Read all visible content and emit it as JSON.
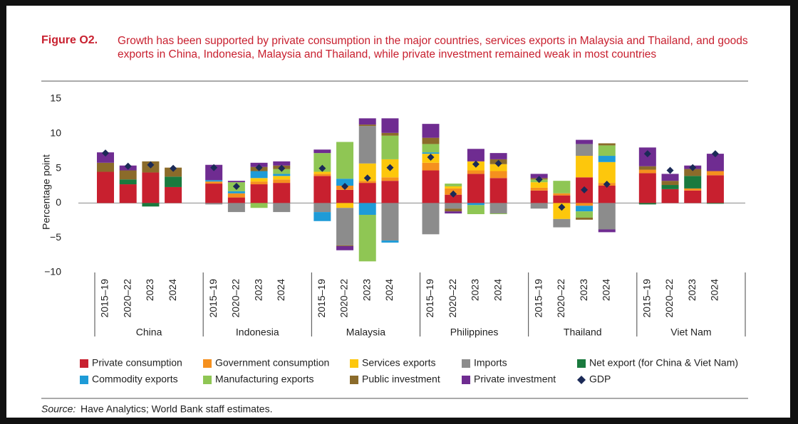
{
  "chart_data": {
    "type": "stacked_bar",
    "figure_label": "Figure O2.",
    "title": "Growth has been supported by private consumption in the major countries, services exports in Malaysia and Thailand, and goods exports in China, Indonesia, Malaysia and Thailand, while private investment remained weak in most countries",
    "y_label": "Percentage point",
    "ylim": [
      -10,
      15
    ],
    "yticks": [
      {
        "value": -10,
        "label": "−10"
      },
      {
        "value": -5,
        "label": "−5"
      },
      0,
      5,
      10,
      15
    ],
    "grid": false,
    "groups": [
      "China",
      "Indonesia",
      "Malaysia",
      "Philippines",
      "Thailand",
      "Viet Nam"
    ],
    "categories": [
      "2015–19",
      "2020–22",
      "2023",
      "2024",
      "2015–19",
      "2020–22",
      "2023",
      "2024",
      "2015–19",
      "2020–22",
      "2023",
      "2024",
      "2015–19",
      "2020–22",
      "2023",
      "2024",
      "2015–19",
      "2020–22",
      "2023",
      "2024",
      "2015–19",
      "2020–22",
      "2023",
      "2024"
    ],
    "series": [
      {
        "name": "Private consumption",
        "color": "#c8202f",
        "values": [
          4.5,
          2.7,
          4.4,
          2.3,
          2.8,
          0.8,
          2.7,
          2.9,
          3.9,
          1.9,
          2.9,
          3.2,
          4.7,
          1.2,
          4.2,
          3.6,
          1.8,
          1.1,
          3.7,
          2.5,
          4.3,
          2.0,
          1.8,
          4.0
        ]
      },
      {
        "name": "Government consumption",
        "color": "#f5901e",
        "values": [
          0,
          0,
          0,
          0,
          0.3,
          0.6,
          0.4,
          0.5,
          0.3,
          0.6,
          0.3,
          0.5,
          1.1,
          0.9,
          0.5,
          1.0,
          0.4,
          0.3,
          -0.4,
          0.4,
          0.5,
          0,
          0.3,
          0.6
        ]
      },
      {
        "name": "Services exports",
        "color": "#fdc70c",
        "values": [
          0,
          0,
          0,
          0,
          0,
          0,
          0.5,
          0.5,
          0.3,
          -0.7,
          2.5,
          2.6,
          1.3,
          0.3,
          1.3,
          1.0,
          0.8,
          -2.3,
          3.1,
          3.0,
          0,
          0,
          0,
          0
        ]
      },
      {
        "name": "Imports",
        "color": "#8c8c8c",
        "values": [
          0,
          0,
          0,
          0,
          -0.2,
          -1.3,
          0,
          -1.3,
          -1.3,
          -5.4,
          5.4,
          -5.4,
          -4.5,
          -0.8,
          0,
          -1.5,
          -0.8,
          -1.2,
          1.7,
          -3.8,
          0,
          0,
          0,
          0
        ]
      },
      {
        "name": "Net export (for China & Viet Nam)",
        "color": "#1a7a3e",
        "values": [
          0,
          0.7,
          -0.5,
          1.5,
          0,
          0,
          0,
          0,
          0,
          0,
          0,
          0,
          0,
          0,
          0,
          0,
          0,
          0,
          0,
          0,
          -0.2,
          0.6,
          1.8,
          -0.1
        ]
      },
      {
        "name": "Commodity exports",
        "color": "#1e9bd7",
        "values": [
          0,
          0,
          0,
          0,
          0.2,
          0.3,
          1.0,
          0.3,
          -1.3,
          1.0,
          -1.7,
          -0.3,
          0.2,
          0,
          -0.3,
          0,
          0,
          0,
          -0.8,
          0.9,
          0,
          0,
          0,
          0
        ]
      },
      {
        "name": "Manufacturing exports",
        "color": "#8fc654",
        "values": [
          0,
          0,
          0,
          0,
          0,
          1.3,
          -0.7,
          0.7,
          2.7,
          5.3,
          -6.7,
          3.4,
          1.2,
          0.4,
          -1.3,
          -0.1,
          0.4,
          1.8,
          -0.9,
          1.5,
          0,
          0,
          0,
          0
        ]
      },
      {
        "name": "Public investment",
        "color": "#8b6b2a",
        "values": [
          1.3,
          1.3,
          1.6,
          1.3,
          0,
          0,
          0.6,
          0.5,
          0,
          -0.1,
          0.2,
          0.4,
          0.9,
          -0.4,
          0,
          0.7,
          0.2,
          0,
          -0.3,
          0.3,
          0.5,
          0.6,
          1.0,
          0
        ]
      },
      {
        "name": "Private investment",
        "color": "#6f2c91",
        "values": [
          1.5,
          0.7,
          0,
          0,
          2.2,
          0.2,
          0.6,
          0.6,
          0.5,
          -0.6,
          0.9,
          2.1,
          2.0,
          -0.3,
          1.8,
          0.9,
          0.6,
          0,
          0.6,
          -0.4,
          2.7,
          1.0,
          0.5,
          2.5
        ]
      }
    ],
    "gdp": {
      "name": "GDP",
      "color": "#1b2a57",
      "values": [
        7.2,
        5.3,
        5.5,
        5.0,
        5.1,
        2.4,
        5.1,
        5.0,
        5.0,
        2.4,
        3.6,
        5.1,
        6.6,
        1.3,
        5.6,
        5.7,
        3.4,
        -0.6,
        1.9,
        2.7,
        7.1,
        4.7,
        5.1,
        7.1
      ]
    },
    "source_label": "Source:",
    "source_text": "Have Analytics; World Bank staff estimates."
  }
}
